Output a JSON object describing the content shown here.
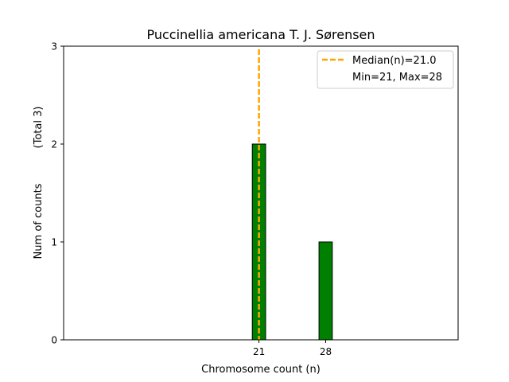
{
  "chart_data": {
    "type": "bar",
    "title": "Puccinellia americana T. J. Sørensen",
    "xlabel": "Chromosome count (n)",
    "ylabel": "Num of counts",
    "ylabel_extra": "(Total 3)",
    "categories": [
      "21",
      "28"
    ],
    "x": [
      21,
      28
    ],
    "values": [
      2,
      1
    ],
    "xlim": [
      0.5,
      41.9
    ],
    "ylim": [
      0,
      3
    ],
    "xticks": [
      21,
      28
    ],
    "yticks": [
      0,
      1,
      2,
      3
    ],
    "bar_color": "#008000",
    "bar_edge_color": "#000000",
    "median": 21.0,
    "median_color": "#ffa500",
    "legend": {
      "position": "top-right",
      "entries": [
        {
          "label": "Median(n)=21.0",
          "style": "dashed-line",
          "color": "#ffa500"
        },
        {
          "label": "Min=21, Max=28",
          "style": "none"
        }
      ]
    },
    "grid": false
  }
}
